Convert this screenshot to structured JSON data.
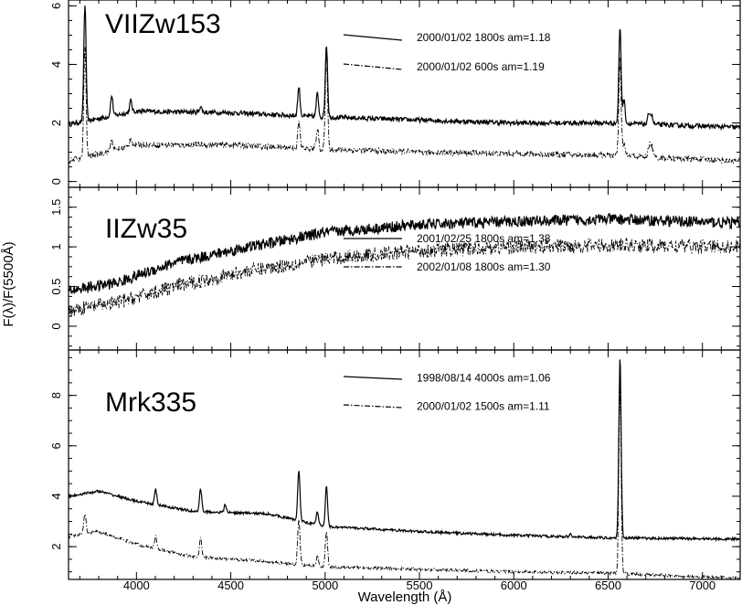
{
  "chart_data": {
    "type": "line",
    "xlabel": "Wavelength (Å)",
    "ylabel": "F(λ)/F(5500Å)",
    "xlim": [
      3640,
      7200
    ],
    "x_ticks": [
      4000,
      4500,
      5000,
      5500,
      6000,
      6500,
      7000
    ],
    "x_tick_labels": [
      "4000",
      "4500",
      "5000",
      "5500",
      "6000",
      "6500",
      "7000"
    ],
    "panels": [
      {
        "name": "VIIZw153",
        "ylim": [
          -0.2,
          6.2
        ],
        "y_ticks": [
          0,
          2,
          4,
          6
        ],
        "y_tick_labels": [
          "0",
          "2",
          "4",
          "6"
        ],
        "series": [
          {
            "name": "2000/01/02 1800s am=1.18",
            "style": "solid",
            "baseline": [
              [
                3640,
                1.95
              ],
              [
                4000,
                2.4
              ],
              [
                4500,
                2.35
              ],
              [
                5000,
                2.2
              ],
              [
                5500,
                2.1
              ],
              [
                6000,
                2.0
              ],
              [
                6500,
                2.0
              ],
              [
                7200,
                1.85
              ]
            ],
            "lines": [
              [
                3727,
                4.0
              ],
              [
                3869,
                0.7
              ],
              [
                3970,
                0.4
              ],
              [
                4340,
                0.2
              ],
              [
                4861,
                1.0
              ],
              [
                4959,
                0.8
              ],
              [
                5007,
                2.5
              ],
              [
                6563,
                3.3
              ],
              [
                6584,
                0.8
              ],
              [
                6717,
                0.4
              ],
              [
                6731,
                0.3
              ]
            ],
            "noise": 0.08
          },
          {
            "name": "2000/01/02  600s am=1.19",
            "style": "dashdot",
            "baseline": [
              [
                3640,
                0.7
              ],
              [
                4000,
                1.25
              ],
              [
                4500,
                1.25
              ],
              [
                5000,
                1.1
              ],
              [
                5500,
                1.0
              ],
              [
                6000,
                0.95
              ],
              [
                6500,
                0.9
              ],
              [
                7200,
                0.7
              ]
            ],
            "lines": [
              [
                3727,
                3.8
              ],
              [
                3869,
                0.4
              ],
              [
                3970,
                0.3
              ],
              [
                4861,
                0.9
              ],
              [
                4959,
                0.7
              ],
              [
                5007,
                3.2
              ],
              [
                6563,
                3.3
              ],
              [
                6584,
                0.4
              ],
              [
                6717,
                0.4
              ],
              [
                6731,
                0.4
              ]
            ],
            "noise": 0.1
          }
        ]
      },
      {
        "name": "IIZw35",
        "ylim": [
          -0.3,
          1.75
        ],
        "y_ticks": [
          0,
          0.5,
          1,
          1.5
        ],
        "y_tick_labels": [
          "0",
          "0.5",
          "1",
          "1.5"
        ],
        "series": [
          {
            "name": "2001/02/25 1800s am=1.38",
            "style": "solid",
            "baseline": [
              [
                3640,
                0.45
              ],
              [
                3900,
                0.55
              ],
              [
                4200,
                0.8
              ],
              [
                4600,
                1.0
              ],
              [
                5000,
                1.18
              ],
              [
                5500,
                1.28
              ],
              [
                6000,
                1.32
              ],
              [
                6500,
                1.35
              ],
              [
                7200,
                1.3
              ]
            ],
            "lines": [],
            "noise": 0.07
          },
          {
            "name": "2002/01/08 1800s am=1.30",
            "style": "dashdot",
            "baseline": [
              [
                3640,
                0.2
              ],
              [
                3900,
                0.3
              ],
              [
                4200,
                0.5
              ],
              [
                4600,
                0.7
              ],
              [
                5000,
                0.85
              ],
              [
                5500,
                0.95
              ],
              [
                6000,
                1.0
              ],
              [
                6500,
                1.02
              ],
              [
                7200,
                1.0
              ]
            ],
            "lines": [],
            "noise": 0.09
          }
        ]
      },
      {
        "name": "Mrk335",
        "ylim": [
          0.7,
          9.8
        ],
        "y_ticks": [
          2,
          4,
          6,
          8
        ],
        "y_tick_labels": [
          "2",
          "4",
          "6",
          "8"
        ],
        "series": [
          {
            "name": "1998/08/14 4000s am=1.06",
            "style": "solid",
            "baseline": [
              [
                3640,
                4.0
              ],
              [
                3800,
                4.2
              ],
              [
                4000,
                3.8
              ],
              [
                4300,
                3.4
              ],
              [
                4700,
                3.3
              ],
              [
                5000,
                2.8
              ],
              [
                5500,
                2.6
              ],
              [
                6000,
                2.45
              ],
              [
                6500,
                2.35
              ],
              [
                7200,
                2.3
              ]
            ],
            "lines": [
              [
                4102,
                0.6
              ],
              [
                4340,
                0.9
              ],
              [
                4471,
                0.3
              ],
              [
                4861,
                2.0
              ],
              [
                4959,
                0.5
              ],
              [
                5007,
                1.6
              ],
              [
                6563,
                7.2
              ],
              [
                6300,
                0.1
              ]
            ],
            "noise": 0.05
          },
          {
            "name": "2000/01/02 1500s am=1.11",
            "style": "dashdot",
            "baseline": [
              [
                3640,
                2.4
              ],
              [
                3800,
                2.6
              ],
              [
                4000,
                2.1
              ],
              [
                4300,
                1.6
              ],
              [
                4700,
                1.4
              ],
              [
                5000,
                1.2
              ],
              [
                5500,
                1.1
              ],
              [
                6000,
                1.0
              ],
              [
                6500,
                0.95
              ],
              [
                7200,
                0.75
              ]
            ],
            "lines": [
              [
                3727,
                0.8
              ],
              [
                4102,
                0.5
              ],
              [
                4340,
                0.8
              ],
              [
                4861,
                1.8
              ],
              [
                4959,
                0.4
              ],
              [
                5007,
                1.4
              ],
              [
                6563,
                7.6
              ]
            ],
            "noise": 0.06
          }
        ]
      }
    ]
  }
}
